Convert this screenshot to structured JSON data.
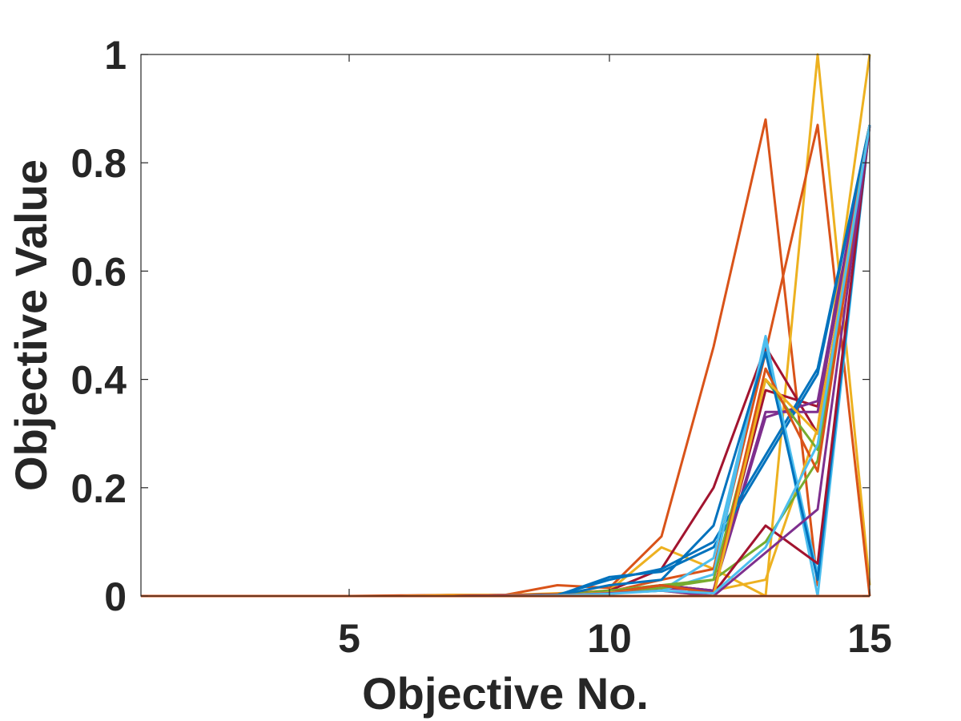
{
  "chart_data": {
    "type": "line",
    "title": "",
    "xlabel": "Objective No.",
    "ylabel": "Objective Value",
    "xlim": [
      1,
      15
    ],
    "ylim": [
      0,
      1
    ],
    "x_ticks": [
      5,
      10,
      15
    ],
    "y_ticks": [
      0,
      0.2,
      0.4,
      0.6,
      0.8,
      1
    ],
    "y_tick_labels": [
      "0",
      "0.2",
      "0.4",
      "0.6",
      "0.8",
      "1"
    ],
    "grid": false,
    "legend": "none",
    "x": [
      1,
      2,
      3,
      4,
      5,
      6,
      7,
      8,
      9,
      10,
      11,
      12,
      13,
      14,
      15
    ],
    "series": [
      {
        "color": "#D95319",
        "values": [
          0,
          0,
          0,
          0,
          0,
          0.001,
          0.002,
          0.002,
          0.02,
          0.015,
          0.11,
          0.46,
          0.88,
          0.02,
          0.87
        ]
      },
      {
        "color": "#EDB120",
        "values": [
          0,
          0,
          0,
          0,
          0,
          0,
          0.002,
          0.002,
          0.005,
          0.01,
          0.09,
          0.05,
          0,
          1.0,
          0.02
        ]
      },
      {
        "color": "#D95319",
        "values": [
          0,
          0,
          0,
          0,
          0,
          0,
          0.001,
          0.001,
          0.004,
          0.008,
          0.03,
          0.05,
          0.45,
          0.87,
          0
        ]
      },
      {
        "color": "#EDB120",
        "values": [
          0,
          0,
          0,
          0,
          0,
          0,
          0.001,
          0.001,
          0.003,
          0.01,
          0.02,
          0.01,
          0.03,
          0.31,
          1.0
        ]
      },
      {
        "color": "#A2142F",
        "values": [
          0,
          0,
          0,
          0,
          0,
          0,
          0,
          0.001,
          0.002,
          0.01,
          0.05,
          0.2,
          0.46,
          0.3,
          0.87
        ]
      },
      {
        "color": "#A2142F",
        "values": [
          0,
          0,
          0,
          0,
          0,
          0,
          0,
          0.001,
          0.002,
          0.006,
          0.02,
          0.01,
          0.38,
          0.35,
          0.87
        ]
      },
      {
        "color": "#7E2F8E",
        "values": [
          0,
          0,
          0,
          0,
          0,
          0,
          0,
          0.001,
          0.002,
          0.005,
          0.02,
          0.01,
          0.34,
          0.34,
          0.87
        ]
      },
      {
        "color": "#7E2F8E",
        "values": [
          0,
          0,
          0,
          0,
          0,
          0,
          0,
          0.001,
          0.002,
          0.004,
          0.015,
          0.01,
          0.33,
          0.36,
          0.87
        ]
      },
      {
        "color": "#0072BD",
        "values": [
          0,
          0,
          0,
          0,
          0,
          0,
          0,
          0,
          0.002,
          0.03,
          0.05,
          0.1,
          0.26,
          0.42,
          0.87
        ]
      },
      {
        "color": "#0072BD",
        "values": [
          0,
          0,
          0,
          0,
          0,
          0,
          0,
          0,
          0.001,
          0.035,
          0.045,
          0.09,
          0.25,
          0.41,
          0.87
        ]
      },
      {
        "color": "#4DBEEE",
        "values": [
          0,
          0,
          0,
          0,
          0,
          0,
          0,
          0,
          0.001,
          0.005,
          0.01,
          0.04,
          0.48,
          0,
          0.87
        ]
      },
      {
        "color": "#4DBEEE",
        "values": [
          0,
          0,
          0,
          0,
          0,
          0,
          0,
          0,
          0.001,
          0.005,
          0.01,
          0.07,
          0.47,
          0.04,
          0.87
        ]
      },
      {
        "color": "#77AC30",
        "values": [
          0,
          0,
          0,
          0,
          0,
          0,
          0,
          0,
          0.001,
          0.01,
          0.02,
          0.03,
          0.4,
          0.27,
          0.87
        ]
      },
      {
        "color": "#77AC30",
        "values": [
          0,
          0,
          0,
          0,
          0,
          0,
          0,
          0,
          0.001,
          0.008,
          0.015,
          0.03,
          0.1,
          0.25,
          0.87
        ]
      },
      {
        "color": "#0072BD",
        "values": [
          0,
          0,
          0,
          0,
          0,
          0,
          0,
          0,
          0.001,
          0.02,
          0.03,
          0.13,
          0.45,
          0.03,
          0.87
        ]
      },
      {
        "color": "#A2142F",
        "values": [
          0,
          0,
          0,
          0,
          0,
          0,
          0,
          0,
          0.001,
          0.006,
          0.02,
          0.005,
          0.13,
          0.06,
          0.87
        ]
      },
      {
        "color": "#D95319",
        "values": [
          0,
          0,
          0,
          0,
          0,
          0,
          0,
          0,
          0.001,
          0.006,
          0.02,
          0.005,
          0.42,
          0.23,
          0.87
        ]
      },
      {
        "color": "#EDB120",
        "values": [
          0,
          0,
          0,
          0,
          0,
          0,
          0,
          0,
          0.001,
          0.006,
          0.01,
          0,
          0.4,
          0.3,
          0.87
        ]
      },
      {
        "color": "#7E2F8E",
        "values": [
          0,
          0,
          0,
          0,
          0,
          0,
          0,
          0,
          0.001,
          0.005,
          0.01,
          0,
          0.08,
          0.16,
          0.87
        ]
      },
      {
        "color": "#4DBEEE",
        "values": [
          0,
          0,
          0,
          0,
          0,
          0,
          0,
          0,
          0.001,
          0.004,
          0.01,
          0.005,
          0.09,
          0.28,
          0.87
        ]
      },
      {
        "color": "#D95319",
        "values": [
          0,
          0,
          0,
          0,
          0,
          0,
          0,
          0,
          0,
          0,
          0,
          0,
          0,
          0,
          0
        ]
      }
    ]
  }
}
